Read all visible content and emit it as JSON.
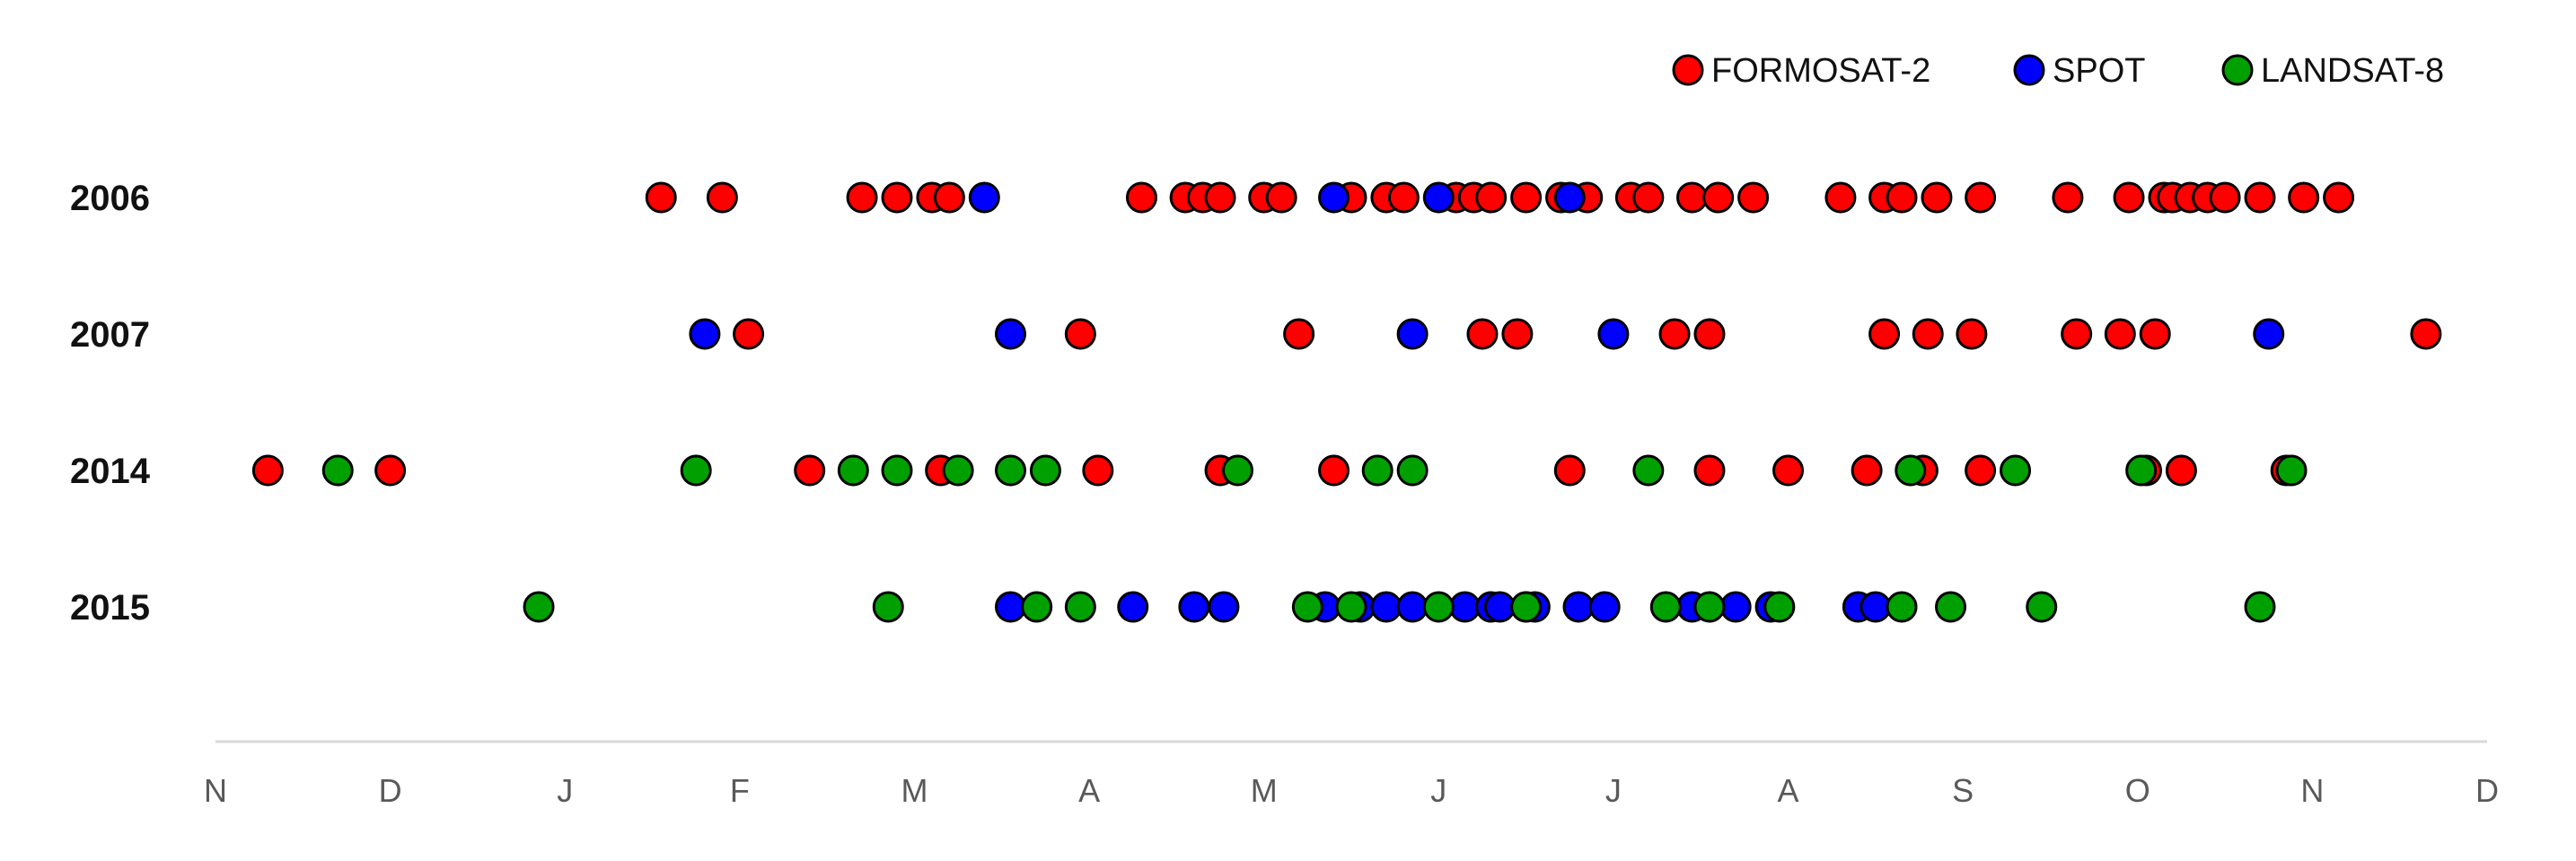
{
  "chart_data": {
    "type": "scatter",
    "title": "",
    "xlabel": "",
    "ylabel": "",
    "x_axis": {
      "unit": "month (index from N of previous year = 0)",
      "range": [
        0,
        13
      ],
      "tick_labels": [
        "N",
        "D",
        "J",
        "F",
        "M",
        "A",
        "M",
        "J",
        "J",
        "A",
        "S",
        "O",
        "N",
        "D"
      ]
    },
    "categories": [
      "2006",
      "2007",
      "2014",
      "2015"
    ],
    "grid": false,
    "legend": {
      "placement": "top-right",
      "entries": [
        {
          "name": "FORMOSAT-2",
          "color": "#ff0000"
        },
        {
          "name": "SPOT",
          "color": "#0000ff"
        },
        {
          "name": "LANDSAT-8",
          "color": "#00a000"
        }
      ]
    },
    "series": [
      {
        "name": "FORMOSAT-2",
        "color": "#ff0000",
        "points": {
          "2006": [
            2.55,
            2.9,
            3.7,
            3.9,
            4.1,
            4.2,
            5.3,
            5.55,
            5.65,
            5.75,
            6.0,
            6.1,
            6.5,
            6.7,
            6.8,
            7.1,
            7.2,
            7.3,
            7.5,
            7.7,
            7.85,
            8.1,
            8.2,
            8.45,
            8.6,
            8.8,
            9.3,
            9.55,
            9.65,
            9.85,
            10.1,
            10.6,
            10.95,
            11.15,
            11.2,
            11.3,
            11.4,
            11.5,
            11.7,
            11.95,
            12.15
          ],
          "2007": [
            3.05,
            4.95,
            6.2,
            7.25,
            7.45,
            8.35,
            8.55,
            9.55,
            9.8,
            10.05,
            10.65,
            10.9,
            11.1,
            12.65
          ],
          "2014": [
            0.3,
            1.0,
            3.4,
            4.15,
            5.05,
            5.75,
            6.4,
            7.75,
            8.55,
            9.0,
            9.45,
            9.77,
            10.1,
            11.05,
            11.25,
            11.85
          ],
          "2015": []
        }
      },
      {
        "name": "SPOT",
        "color": "#0000ff",
        "points": {
          "2006": [
            4.4,
            6.4,
            7.0,
            7.75
          ],
          "2007": [
            2.8,
            4.55,
            6.85,
            8.0,
            11.75
          ],
          "2014": [],
          "2015": [
            4.55,
            5.25,
            5.6,
            5.77,
            6.35,
            6.55,
            6.7,
            6.85,
            7.15,
            7.3,
            7.35,
            7.5,
            7.55,
            7.8,
            7.95,
            8.45,
            8.7,
            8.9,
            9.4,
            9.5
          ]
        }
      },
      {
        "name": "LANDSAT-8",
        "color": "#00a000",
        "points": {
          "2006": [],
          "2007": [],
          "2014": [
            0.7,
            2.75,
            3.65,
            3.9,
            4.25,
            4.55,
            4.75,
            5.85,
            6.65,
            6.85,
            8.2,
            9.7,
            10.3,
            11.02,
            11.88
          ],
          "2015": [
            1.85,
            3.85,
            4.7,
            4.95,
            6.25,
            6.5,
            7.0,
            7.5,
            8.3,
            8.55,
            8.95,
            9.65,
            9.93,
            10.45,
            11.7
          ]
        }
      }
    ]
  }
}
